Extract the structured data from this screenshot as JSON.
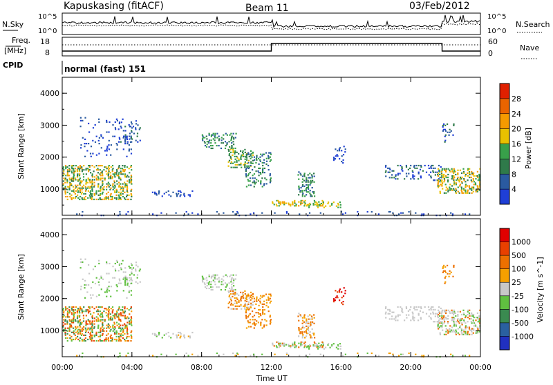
{
  "header": {
    "station": "Kapuskasing (fitACF)",
    "beam": "Beam 11",
    "date": "03/Feb/2012"
  },
  "noise_panel": {
    "left_label": "N.Sky",
    "right_label": "N.Search",
    "ticks_left": [
      "10^5",
      "10^0"
    ],
    "ticks_right": [
      "10^5",
      "10^0"
    ]
  },
  "freq_panel": {
    "left_label_1": "Freq.",
    "left_label_2": "[MHz]",
    "right_label": "Nave",
    "ticks_left": [
      "18",
      "8"
    ],
    "ticks_right": [
      "60",
      "0"
    ]
  },
  "cpid": {
    "label": "CPID",
    "value": "normal (fast) 151"
  },
  "chart_data": [
    {
      "type": "heatmap",
      "title": "Power",
      "ylabel": "Slant Range [km]",
      "xlabel": "Time UT",
      "ylim": [
        180,
        4500
      ],
      "yticks": [
        "1000",
        "2000",
        "3000",
        "4000"
      ],
      "colorbar": {
        "label": "Power [dB]",
        "ticks": [
          "4",
          "8",
          "12",
          "16",
          "20",
          "24",
          "28"
        ],
        "colors": [
          "#1f3fd6",
          "#2a5aa0",
          "#2f7a4a",
          "#38a04a",
          "#e8c000",
          "#f59a00",
          "#ea6400",
          "#e02000"
        ]
      }
    },
    {
      "type": "heatmap",
      "title": "Velocity",
      "ylabel": "Slant Range [km]",
      "xlabel": "Time UT",
      "ylim": [
        180,
        4500
      ],
      "yticks": [
        "1000",
        "2000",
        "3000",
        "4000"
      ],
      "colorbar": {
        "label": "Velocity [m s^-1]",
        "ticks": [
          "1000",
          "500",
          "100",
          "25",
          "-25",
          "-100",
          "-500",
          "-1000"
        ],
        "colors": [
          "#2030c0",
          "#2a60a0",
          "#3a8a50",
          "#60c040",
          "#c8c8c8",
          "#f5a000",
          "#ec7000",
          "#e84000",
          "#e00000"
        ]
      }
    }
  ],
  "xaxis": {
    "ticks": [
      "00:00",
      "04:00",
      "08:00",
      "12:00",
      "16:00",
      "20:00",
      "00:00"
    ],
    "label": "Time UT"
  }
}
